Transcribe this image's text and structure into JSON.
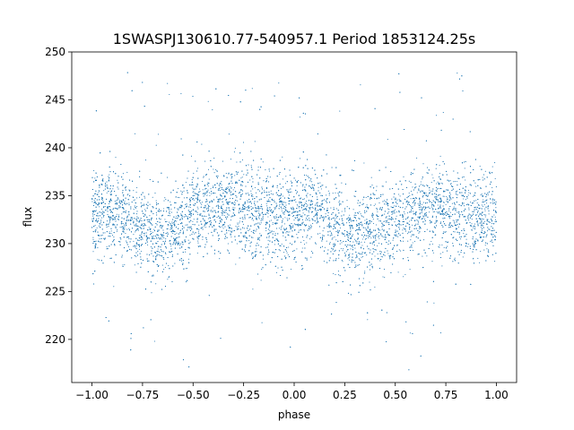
{
  "chart_data": {
    "type": "scatter",
    "title": "1SWASPJ130610.77-540957.1 Period 1853124.25s",
    "xlabel": "phase",
    "ylabel": "flux",
    "xlim": [
      -1.1,
      1.1
    ],
    "ylim": [
      215.5,
      250
    ],
    "xticks": [
      -1.0,
      -0.75,
      -0.5,
      -0.25,
      0.0,
      0.25,
      0.5,
      0.75,
      1.0
    ],
    "xtick_labels": [
      "−1.00",
      "−0.75",
      "−0.50",
      "−0.25",
      "0.00",
      "0.25",
      "0.50",
      "0.75",
      "1.00"
    ],
    "yticks": [
      220,
      225,
      230,
      235,
      240,
      245,
      250
    ],
    "ytick_labels": [
      "220",
      "225",
      "230",
      "235",
      "240",
      "245",
      "250"
    ],
    "grid": false,
    "legend": "none",
    "marker_color": "#1f77b4",
    "series": [
      {
        "x": [
          -1.0,
          -0.9,
          -0.8,
          -0.7,
          -0.6,
          -0.5,
          -0.4,
          -0.3,
          -0.2,
          -0.1,
          0.0,
          0.1,
          0.2,
          0.3,
          0.4,
          0.5,
          0.6,
          0.7,
          0.8,
          0.9,
          1.0
        ],
        "y": [
          233.0,
          233.5,
          232.0,
          231.0,
          231.5,
          233.0,
          233.5,
          234.0,
          233.0,
          232.5,
          233.0,
          233.5,
          231.5,
          231.0,
          231.5,
          232.5,
          233.0,
          234.0,
          233.0,
          232.5,
          233.0
        ]
      }
    ]
  }
}
